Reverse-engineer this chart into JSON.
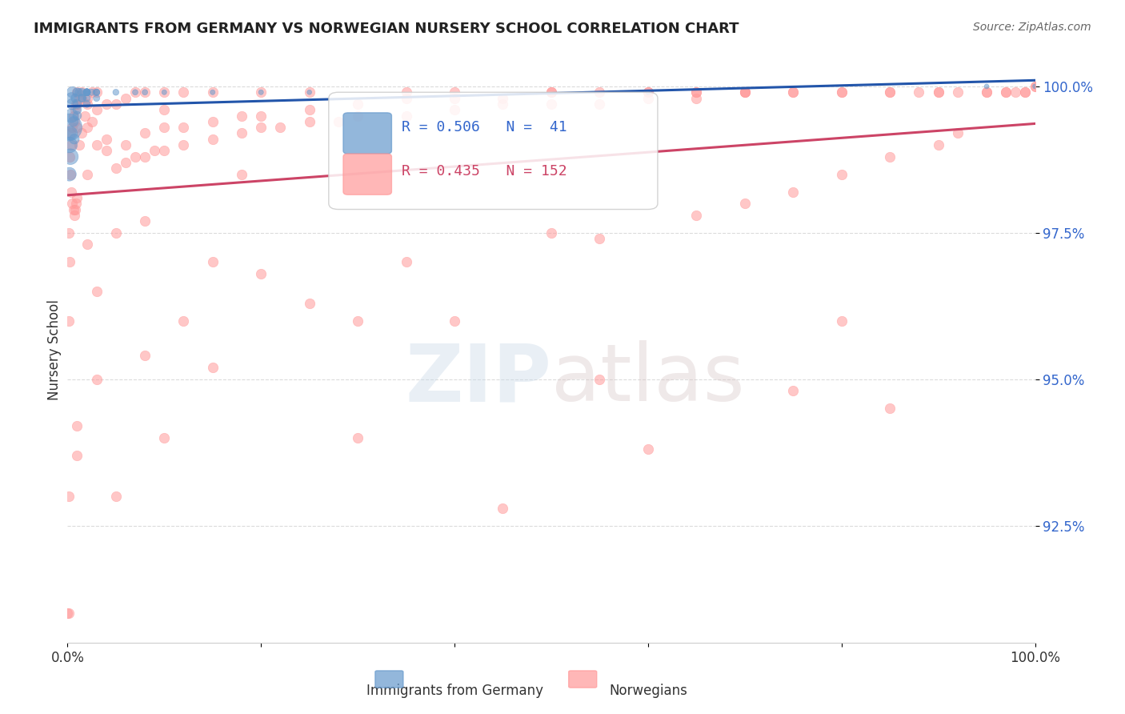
{
  "title": "IMMIGRANTS FROM GERMANY VS NORWEGIAN NURSERY SCHOOL CORRELATION CHART",
  "source": "Source: ZipAtlas.com",
  "xlabel": "",
  "ylabel": "Nursery School",
  "xlim": [
    0,
    1
  ],
  "ylim": [
    0.905,
    1.005
  ],
  "ytick_labels": [
    "92.5%",
    "95.0%",
    "97.5%",
    "100.0%"
  ],
  "ytick_values": [
    0.925,
    0.95,
    0.975,
    1.0
  ],
  "xtick_labels": [
    "0.0%",
    "",
    "",
    "",
    "",
    "100.0%"
  ],
  "xtick_values": [
    0,
    0.2,
    0.4,
    0.6,
    0.8,
    1.0
  ],
  "blue_color": "#6699cc",
  "pink_color": "#ff9999",
  "blue_line_color": "#2255aa",
  "pink_line_color": "#cc4466",
  "legend_blue_color": "#6699cc",
  "legend_pink_color": "#ff9999",
  "R_blue": 0.506,
  "N_blue": 41,
  "R_pink": 0.435,
  "N_pink": 152,
  "blue_label": "Immigrants from Germany",
  "pink_label": "Norwegians",
  "watermark": "ZIPatlas",
  "background_color": "#ffffff",
  "grid_color": "#cccccc",
  "blue_scatter_x": [
    0.001,
    0.002,
    0.002,
    0.003,
    0.003,
    0.004,
    0.004,
    0.005,
    0.005,
    0.006,
    0.007,
    0.008,
    0.01,
    0.01,
    0.01,
    0.01,
    0.012,
    0.015,
    0.015,
    0.015,
    0.02,
    0.02,
    0.02,
    0.02,
    0.02,
    0.02,
    0.02,
    0.025,
    0.03,
    0.03,
    0.03,
    0.05,
    0.07,
    0.08,
    0.1,
    0.15,
    0.2,
    0.25,
    0.6,
    0.95,
    1.0
  ],
  "blue_scatter_y": [
    0.993,
    0.99,
    0.985,
    0.988,
    0.992,
    0.995,
    0.998,
    0.999,
    0.997,
    0.994,
    0.991,
    0.998,
    0.999,
    0.997,
    0.996,
    0.995,
    0.999,
    0.998,
    0.999,
    0.998,
    0.999,
    0.999,
    0.999,
    0.998,
    0.997,
    0.999,
    0.999,
    0.999,
    0.999,
    0.998,
    0.999,
    0.999,
    0.999,
    0.999,
    0.999,
    0.999,
    0.999,
    0.999,
    0.999,
    1.0,
    1.0
  ],
  "blue_scatter_size": [
    600,
    200,
    150,
    200,
    150,
    150,
    100,
    100,
    100,
    80,
    80,
    60,
    60,
    60,
    60,
    60,
    50,
    50,
    50,
    50,
    40,
    40,
    40,
    40,
    40,
    40,
    40,
    35,
    35,
    35,
    35,
    30,
    25,
    25,
    20,
    20,
    20,
    18,
    18,
    18,
    18
  ],
  "pink_scatter_x": [
    0.001,
    0.001,
    0.001,
    0.001,
    0.002,
    0.002,
    0.003,
    0.003,
    0.004,
    0.004,
    0.005,
    0.005,
    0.006,
    0.006,
    0.007,
    0.007,
    0.008,
    0.008,
    0.009,
    0.009,
    0.01,
    0.01,
    0.01,
    0.01,
    0.012,
    0.012,
    0.015,
    0.015,
    0.015,
    0.018,
    0.02,
    0.02,
    0.02,
    0.025,
    0.025,
    0.03,
    0.03,
    0.03,
    0.04,
    0.04,
    0.05,
    0.05,
    0.06,
    0.06,
    0.07,
    0.07,
    0.08,
    0.08,
    0.09,
    0.1,
    0.1,
    0.1,
    0.12,
    0.12,
    0.15,
    0.15,
    0.18,
    0.2,
    0.2,
    0.22,
    0.25,
    0.25,
    0.28,
    0.3,
    0.35,
    0.35,
    0.4,
    0.4,
    0.45,
    0.5,
    0.5,
    0.55,
    0.6,
    0.6,
    0.65,
    0.65,
    0.7,
    0.7,
    0.75,
    0.8,
    0.8,
    0.85,
    0.85,
    0.88,
    0.9,
    0.9,
    0.92,
    0.95,
    0.95,
    0.97,
    0.97,
    0.98,
    0.99,
    0.99,
    1.0,
    1.0,
    0.55,
    0.4,
    0.02,
    0.15,
    0.08,
    0.05,
    0.03,
    0.08,
    0.12,
    0.2,
    0.25,
    0.35,
    0.5,
    0.65,
    0.7,
    0.75,
    0.8,
    0.85,
    0.9,
    0.92,
    0.01,
    0.01,
    0.15,
    0.45,
    0.03,
    0.18,
    0.3,
    0.6,
    0.75,
    0.85,
    0.02,
    0.04,
    0.06,
    0.08,
    0.1,
    0.12,
    0.15,
    0.18,
    0.2,
    0.25,
    0.3,
    0.35,
    0.4,
    0.45,
    0.5,
    0.55,
    0.6,
    0.65,
    0.7,
    0.75,
    0.05,
    0.3,
    0.55,
    0.8,
    0.0,
    0.1
  ],
  "pink_scatter_y": [
    0.91,
    0.93,
    0.96,
    0.975,
    0.97,
    0.988,
    0.985,
    0.992,
    0.982,
    0.99,
    0.98,
    0.993,
    0.979,
    0.995,
    0.978,
    0.994,
    0.979,
    0.996,
    0.98,
    0.997,
    0.981,
    0.993,
    0.997,
    0.999,
    0.99,
    0.998,
    0.992,
    0.999,
    0.998,
    0.995,
    0.993,
    0.997,
    0.998,
    0.994,
    0.999,
    0.99,
    0.996,
    0.999,
    0.991,
    0.997,
    0.986,
    0.997,
    0.987,
    0.998,
    0.988,
    0.999,
    0.988,
    0.999,
    0.989,
    0.989,
    0.996,
    0.999,
    0.99,
    0.999,
    0.991,
    0.999,
    0.992,
    0.993,
    0.999,
    0.993,
    0.994,
    0.999,
    0.994,
    0.995,
    0.995,
    0.999,
    0.996,
    0.999,
    0.997,
    0.997,
    0.999,
    0.997,
    0.998,
    0.999,
    0.998,
    0.999,
    0.999,
    0.999,
    0.999,
    0.999,
    0.999,
    0.999,
    0.999,
    0.999,
    0.999,
    0.999,
    0.999,
    0.999,
    0.999,
    0.999,
    0.999,
    0.999,
    0.999,
    0.999,
    1.0,
    1.0,
    0.974,
    0.96,
    0.973,
    0.97,
    0.977,
    0.975,
    0.965,
    0.954,
    0.96,
    0.968,
    0.963,
    0.97,
    0.975,
    0.978,
    0.98,
    0.982,
    0.985,
    0.988,
    0.99,
    0.992,
    0.937,
    0.942,
    0.952,
    0.928,
    0.95,
    0.985,
    0.96,
    0.938,
    0.948,
    0.945,
    0.985,
    0.989,
    0.99,
    0.992,
    0.993,
    0.993,
    0.994,
    0.995,
    0.995,
    0.996,
    0.997,
    0.998,
    0.998,
    0.998,
    0.999,
    0.999,
    0.999,
    0.999,
    0.999,
    0.999,
    0.93,
    0.94,
    0.95,
    0.96,
    0.91,
    0.94
  ]
}
